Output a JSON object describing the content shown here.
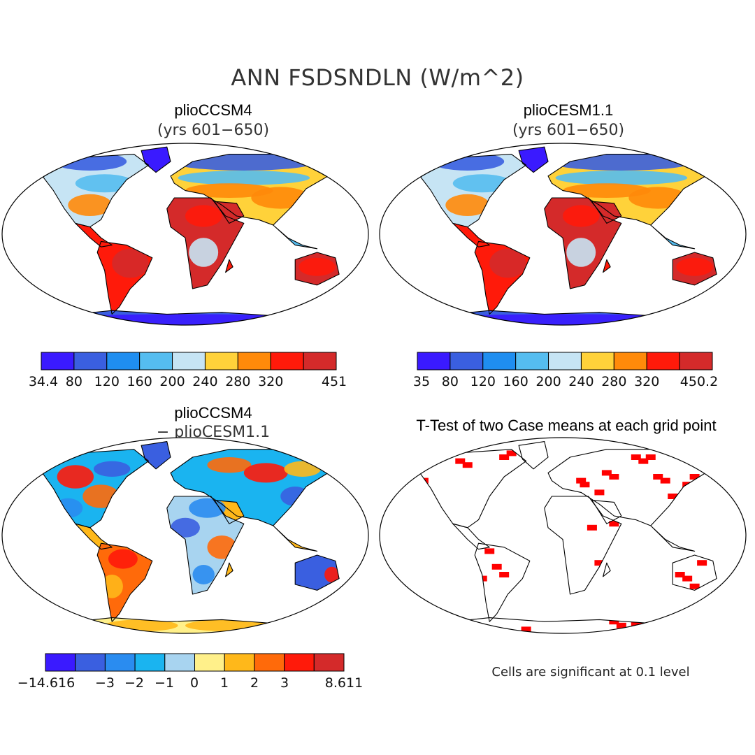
{
  "title": "ANN FSDSNDLN (W/m^2)",
  "panels": {
    "p1": {
      "title": "plioCCSM4",
      "subtitle": "(yrs 601−650)"
    },
    "p2": {
      "title": "plioCESM1.1",
      "subtitle": "(yrs 601−650)"
    },
    "p3": {
      "title": "plioCCSM4",
      "subtitle": "− plioCESM1.1"
    },
    "p4": {
      "title": "T-Test of two Case means at each grid point",
      "note": "Cells are significant at 0.1 level"
    }
  },
  "colors": {
    "abs_scale": [
      "#3a1aff",
      "#3a5fe0",
      "#1f8ef0",
      "#55bdf0",
      "#c6e4f4",
      "#ffd23a",
      "#ff8a0a",
      "#ff1a0a",
      "#d42a2a"
    ],
    "diff_scale": [
      "#3a1aff",
      "#3a5fe0",
      "#2a8cf0",
      "#1ab4f0",
      "#a8d4f0",
      "#fff08a",
      "#ffb81a",
      "#ff6a0a",
      "#ff1a0a",
      "#d42a2a"
    ],
    "significance": "#ff0000"
  },
  "chart_data": [
    {
      "type": "heatmap",
      "title": "plioCCSM4",
      "subtitle": "(yrs 601−650)",
      "variable": "ANN FSDSNDLN (W/m^2)",
      "colorbar": {
        "labels": [
          "34.4",
          "80",
          "120",
          "160",
          "200",
          "240",
          "280",
          "320",
          "451"
        ]
      }
    },
    {
      "type": "heatmap",
      "title": "plioCESM1.1",
      "subtitle": "(yrs 601−650)",
      "variable": "ANN FSDSNDLN (W/m^2)",
      "colorbar": {
        "labels": [
          "35",
          "80",
          "120",
          "160",
          "200",
          "240",
          "280",
          "320",
          "450.2"
        ]
      }
    },
    {
      "type": "heatmap",
      "title": "plioCCSM4 − plioCESM1.1",
      "variable": "ANN FSDSNDLN (W/m^2)",
      "colorbar": {
        "labels": [
          "−14.616",
          "−3",
          "−2",
          "−1",
          "0",
          "1",
          "2",
          "3",
          "8.611"
        ]
      }
    },
    {
      "type": "heatmap",
      "title": "T-Test of two Case means at each grid point",
      "note": "Cells are significant at 0.1 level"
    }
  ]
}
